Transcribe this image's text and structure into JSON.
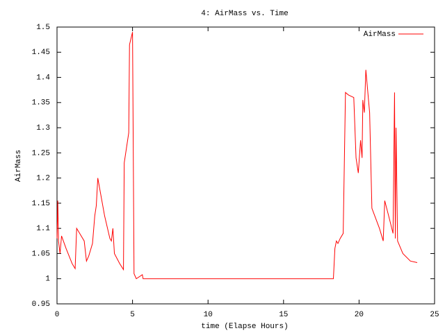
{
  "chart_data": {
    "type": "line",
    "title": "4: AirMass vs. Time",
    "x_label": "time (Elapse Hours)",
    "y_label": "AirMass",
    "x": [
      0,
      0.05,
      0.1,
      0.2,
      0.3,
      0.6,
      1.0,
      1.2,
      1.3,
      1.8,
      1.95,
      2.1,
      2.35,
      2.5,
      2.6,
      2.7,
      3.15,
      3.5,
      3.6,
      3.7,
      3.8,
      4.15,
      4.4,
      4.45,
      4.75,
      4.8,
      5.0,
      5.1,
      5.25,
      5.65,
      5.7,
      18.3,
      18.4,
      18.5,
      18.6,
      18.75,
      18.95,
      19.1,
      19.3,
      19.65,
      19.8,
      19.95,
      20.1,
      20.2,
      20.25,
      20.35,
      20.45,
      20.7,
      20.85,
      21.1,
      21.35,
      21.6,
      21.7,
      22.0,
      22.25,
      22.35,
      22.4,
      22.45,
      22.55,
      22.9,
      23.4,
      23.85
    ],
    "series": [
      {
        "name": "AirMass",
        "color": "#ff0000",
        "values": [
          1.08,
          1.155,
          1.075,
          1.05,
          1.085,
          1.06,
          1.03,
          1.02,
          1.1,
          1.075,
          1.035,
          1.045,
          1.07,
          1.125,
          1.145,
          1.2,
          1.125,
          1.08,
          1.075,
          1.1,
          1.05,
          1.03,
          1.018,
          1.23,
          1.29,
          1.465,
          1.49,
          1.01,
          1.0,
          1.008,
          1.0,
          1.0,
          1.06,
          1.075,
          1.07,
          1.08,
          1.09,
          1.37,
          1.365,
          1.36,
          1.24,
          1.21,
          1.275,
          1.24,
          1.355,
          1.33,
          1.415,
          1.33,
          1.14,
          1.12,
          1.1,
          1.075,
          1.155,
          1.12,
          1.09,
          1.37,
          1.08,
          1.3,
          1.075,
          1.05,
          1.035,
          1.032
        ]
      }
    ],
    "xlim": [
      0,
      25
    ],
    "xticks": [
      0,
      5,
      10,
      15,
      20,
      25
    ],
    "ylim": [
      0.95,
      1.5
    ],
    "yticks": [
      0.95,
      1,
      1.05,
      1.1,
      1.15,
      1.2,
      1.25,
      1.3,
      1.35,
      1.4,
      1.45,
      1.5
    ],
    "grid": false,
    "legend": "top-right"
  }
}
